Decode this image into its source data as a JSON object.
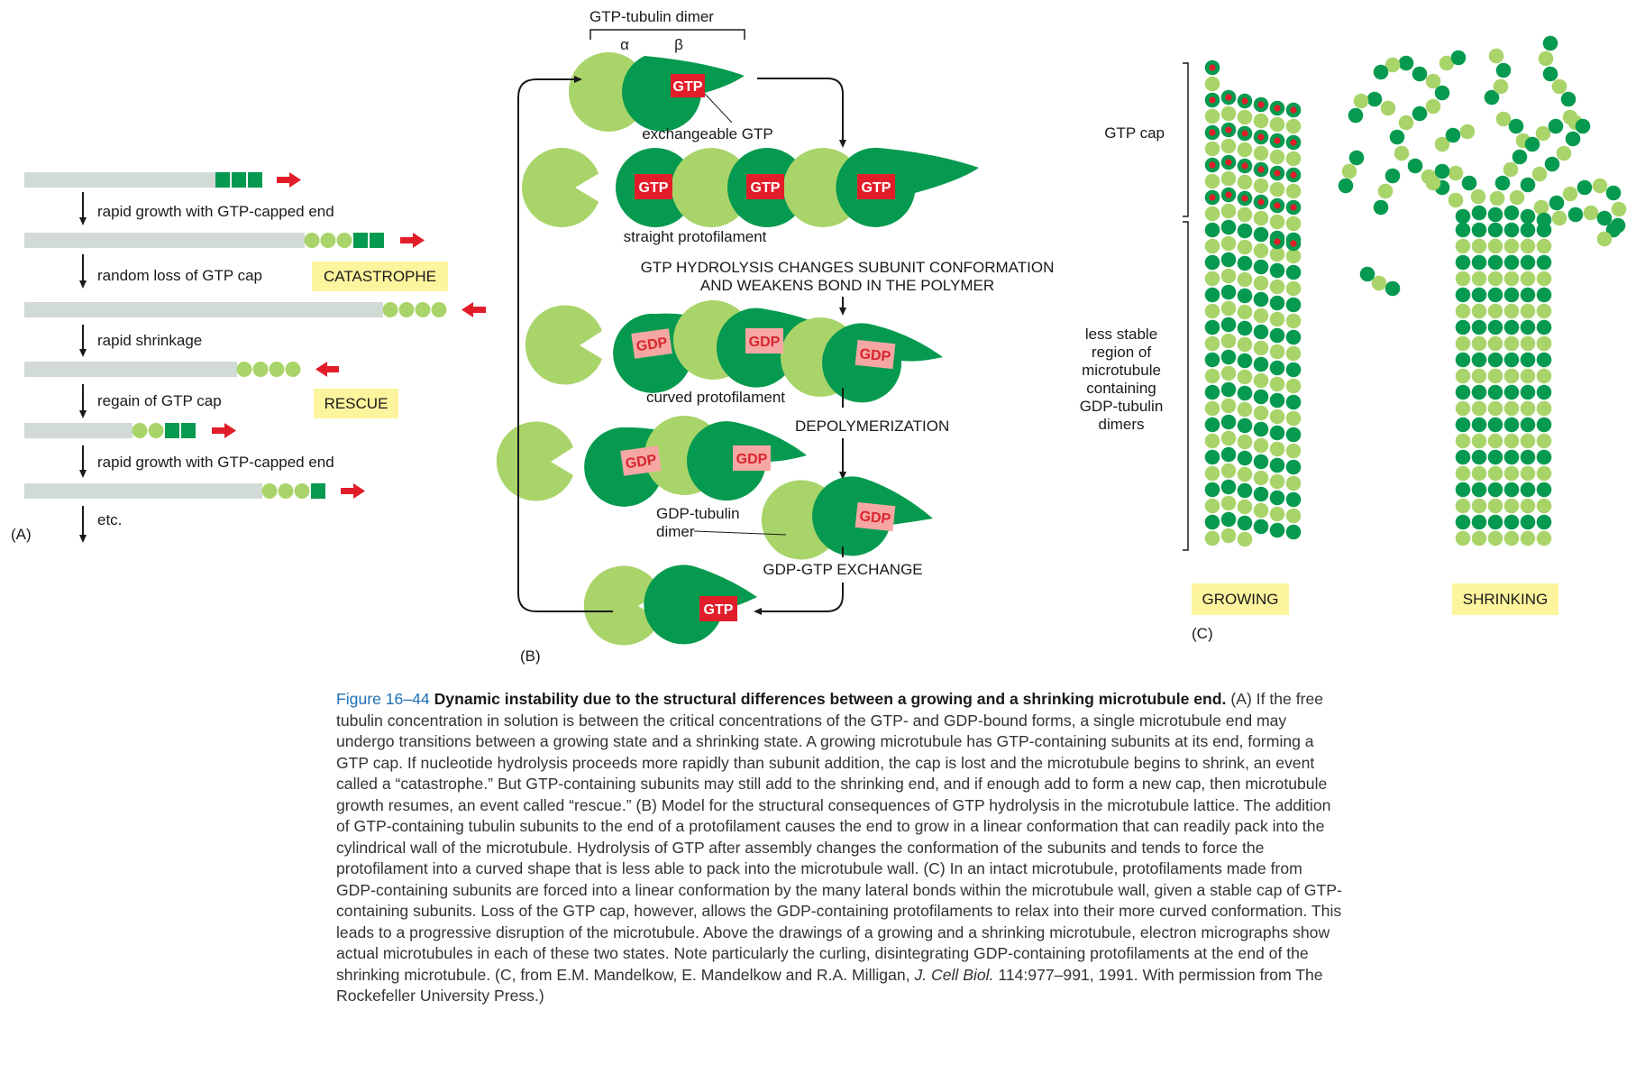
{
  "colors": {
    "dark_green": "#059a4f",
    "light_green": "#a9d46a",
    "gtp_red": "#e21d2a",
    "gdp_pink": "#f7a7a3",
    "gdp_text": "#d7262f",
    "highlight": "#fdf49e",
    "grey_bar": "#d2dad6",
    "red_arrow": "#e21d2a"
  },
  "panel_a": {
    "label": "(A)",
    "steps": [
      "rapid growth with GTP-capped end",
      "random loss of GTP cap",
      "rapid shrinkage",
      "regain of GTP cap",
      "rapid growth with GTP-capped end",
      "etc."
    ],
    "catastrophe": "CATASTROPHE",
    "rescue": "RESCUE"
  },
  "panel_b": {
    "label": "(B)",
    "dimer_title": "GTP-tubulin dimer",
    "alpha": "α",
    "beta": "β",
    "gtp": "GTP",
    "gdp": "GDP",
    "exchangeable": "exchangeable GTP",
    "straight": "straight protofilament",
    "hydrolysis_line1": "GTP HYDROLYSIS CHANGES SUBUNIT CONFORMATION",
    "hydrolysis_line2": "AND WEAKENS BOND IN THE POLYMER",
    "curved": "curved protofilament",
    "depolymerization": "DEPOLYMERIZATION",
    "gdp_dimer_line1": "GDP-tubulin",
    "gdp_dimer_line2": "dimer",
    "exchange": "GDP-GTP EXCHANGE"
  },
  "panel_c": {
    "label": "(C)",
    "gtp_cap": "GTP cap",
    "less_stable": [
      "less stable",
      "region of",
      "microtubule",
      "containing",
      "GDP-tubulin",
      "dimers"
    ],
    "growing": "GROWING",
    "shrinking": "SHRINKING"
  },
  "caption": {
    "fig_number": "Figure 16–44",
    "heading": "Dynamic instability due to the structural differences between a growing and a shrinking microtubule end.",
    "body_1": "(A) If the free tubulin concentration in solution is between the critical concentrations of the GTP- and GDP-bound forms, a single microtubule end may undergo transitions between a growing state and a shrinking state. A growing microtubule has GTP-containing subunits at its end, forming a GTP cap. If nucleotide hydrolysis proceeds more rapidly than subunit addition, the cap is lost and the microtubule begins to shrink, an event called a “catastrophe.” But GTP-containing subunits may still add to the shrinking end, and if enough add to form a new cap, then microtubule growth resumes, an event called “rescue.” (B) Model for the structural consequences of GTP hydrolysis in the microtubule lattice. The addition of GTP-containing tubulin subunits to the end of a protofilament causes the end to grow in a linear conformation that can readily pack into the cylindrical wall of the microtubule. Hydrolysis of GTP after assembly changes the conformation of the subunits and tends to force the protofilament into a curved shape that is less able to pack into the microtubule wall. (C) In an intact microtubule, protofilaments made from GDP-containing subunits are forced into a linear conformation by the many lateral bonds within the microtubule wall, given a stable cap of GTP-containing subunits. Loss of the GTP cap, however, allows the GDP-containing protofilaments to relax into their more curved conformation. This leads to a progressive disruption of the microtubule. Above the drawings of a growing and a shrinking microtubule, electron micrographs show actual microtubules in each of these two states. Note particularly the curling, disintegrating GDP-containing protofilaments at the end of the shrinking microtubule. (C, from E.M. Mandelkow, E. Mandelkow and R.A. Milligan,",
    "journal": "J. Cell Biol.",
    "body_2": "114:977–991, 1991. With permission from The Rockefeller University Press.)"
  }
}
